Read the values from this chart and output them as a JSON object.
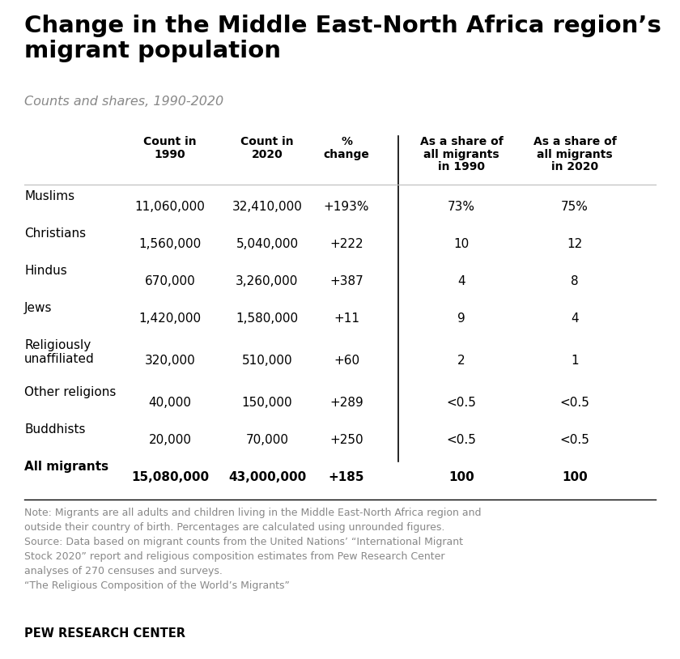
{
  "title": "Change in the Middle East-North Africa region’s\nmigrant population",
  "subtitle": "Counts and shares, 1990-2020",
  "col_headers": [
    "Count in\n1990",
    "Count in\n2020",
    "%\nchange",
    "As a share of\nall migrants\nin 1990",
    "As a share of\nall migrants\nin 2020"
  ],
  "rows": [
    [
      "Muslims",
      "11,060,000",
      "32,410,000",
      "+193%",
      "73%",
      "75%"
    ],
    [
      "Christians",
      "1,560,000",
      "5,040,000",
      "+222",
      "10",
      "12"
    ],
    [
      "Hindus",
      "670,000",
      "3,260,000",
      "+387",
      "4",
      "8"
    ],
    [
      "Jews",
      "1,420,000",
      "1,580,000",
      "+11",
      "9",
      "4"
    ],
    [
      "Religiously\nunaffiliated",
      "320,000",
      "510,000",
      "+60",
      "2",
      "1"
    ],
    [
      "Other religions",
      "40,000",
      "150,000",
      "+289",
      "<0.5",
      "<0.5"
    ],
    [
      "Buddhists",
      "20,000",
      "70,000",
      "+250",
      "<0.5",
      "<0.5"
    ],
    [
      "All migrants",
      "15,080,000",
      "43,000,000",
      "+185",
      "100",
      "100"
    ]
  ],
  "note_text": "Note: Migrants are all adults and children living in the Middle East-North Africa region and\noutside their country of birth. Percentages are calculated using unrounded figures.\nSource: Data based on migrant counts from the United Nations’ “International Migrant\nStock 2020” report and religious composition estimates from Pew Research Center\nanalyses of 270 censuses and surveys.\n“The Religious Composition of the World’s Migrants”",
  "footer": "PEW RESEARCH CENTER",
  "bg_color": "#ffffff",
  "title_color": "#000000",
  "subtitle_color": "#888888",
  "header_color": "#000000",
  "row_label_color": "#000000",
  "data_color": "#000000",
  "note_color": "#888888",
  "footer_color": "#000000",
  "divider_color": "#000000"
}
